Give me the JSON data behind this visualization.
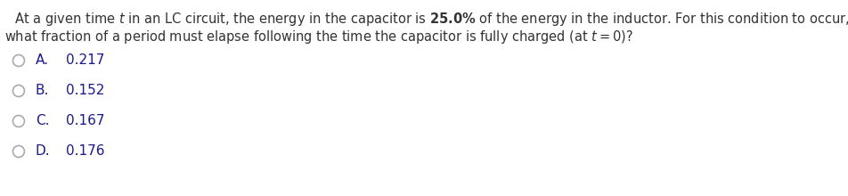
{
  "line1": "    At a given time $t$ in an LC circuit, the energy in the capacitor is $\\mathbf{25.0\\%}$ of the energy in the inductor. For this condition to occur,",
  "line2": "what fraction of a period must elapse following the time the capacitor is fully charged (at $t = 0$)?",
  "option_letters": [
    "A.",
    "B.",
    "C.",
    "D."
  ],
  "option_values": [
    "0.217",
    "0.152",
    "0.167",
    "0.176"
  ],
  "question_color": "#333333",
  "option_letter_color": "#1a1a8c",
  "option_value_color": "#1a1a8c",
  "circle_color": "#aaaaaa",
  "background_color": "#ffffff",
  "question_fontsize": 10.5,
  "option_fontsize": 11.0,
  "fig_width": 9.52,
  "fig_height": 2.2,
  "dpi": 100
}
